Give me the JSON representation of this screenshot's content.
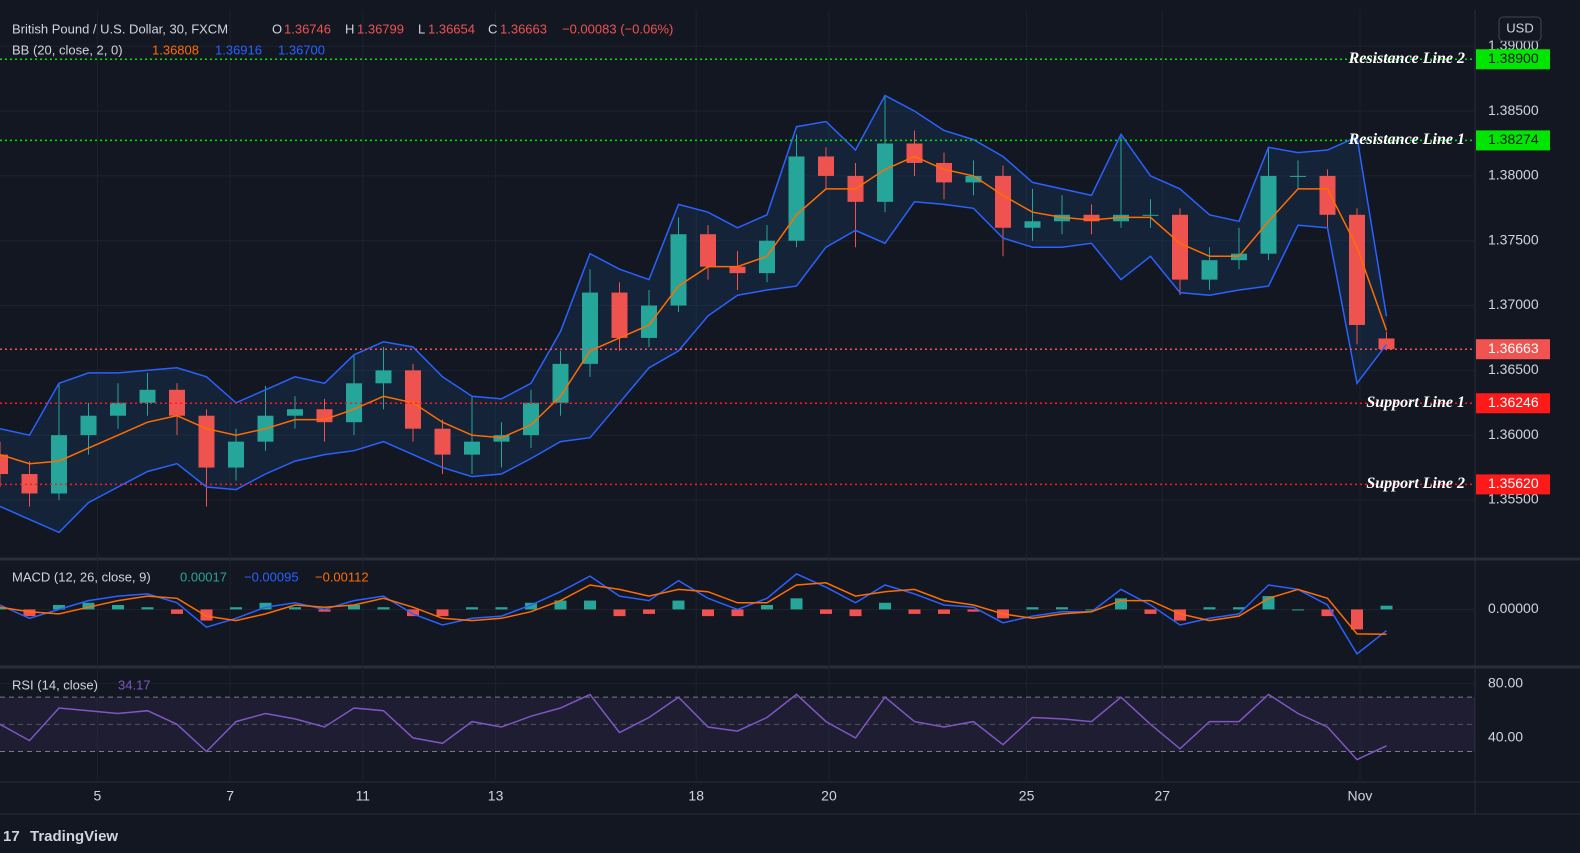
{
  "header": {
    "symbol": "British Pound / U.S. Dollar, 30, FXCM",
    "o_key": "O",
    "o": "1.36746",
    "h_key": "H",
    "h": "1.36799",
    "l_key": "L",
    "l": "1.36654",
    "c_key": "C",
    "c": "1.36663",
    "change": "−0.00083 (−0.06%)",
    "bb_name": "BB (20, close, 2, 0)",
    "bb_basis": "1.36808",
    "bb_upper": "1.36916",
    "bb_lower": "1.36700",
    "macd_name": "MACD (12, 26, close, 9)",
    "macd_hist": "0.00017",
    "macd_line": "−0.00095",
    "macd_signal": "−0.00112",
    "rsi_name": "RSI (14, close)",
    "rsi_value": "34.17",
    "currency": "USD",
    "watermark": "TradingView"
  },
  "chart_data": [
    {
      "type": "candlestick",
      "up_color": "#26a69a",
      "down_color": "#ef5350",
      "xlim": [
        0,
        50
      ],
      "xticks": [
        {
          "value": 3.3,
          "label": "5"
        },
        {
          "value": 7.8,
          "label": "7"
        },
        {
          "value": 12.3,
          "label": "11"
        },
        {
          "value": 16.8,
          "label": "13"
        },
        {
          "value": 23.6,
          "label": "18"
        },
        {
          "value": 28.1,
          "label": "20"
        },
        {
          "value": 34.8,
          "label": "25"
        },
        {
          "value": 39.4,
          "label": "27"
        },
        {
          "value": 46.1,
          "label": "Nov"
        }
      ],
      "ylim": [
        1.3506,
        1.3928
      ],
      "yticks": [
        {
          "value": 1.39,
          "label": "1.39000"
        },
        {
          "value": 1.385,
          "label": "1.38500"
        },
        {
          "value": 1.38,
          "label": "1.38000"
        },
        {
          "value": 1.375,
          "label": "1.37500"
        },
        {
          "value": 1.37,
          "label": "1.37000"
        },
        {
          "value": 1.365,
          "label": "1.36500"
        },
        {
          "value": 1.36,
          "label": "1.36000"
        },
        {
          "value": 1.355,
          "label": "1.35500"
        }
      ],
      "grid": true,
      "open": [
        1.3585,
        1.357,
        1.3555,
        1.36,
        1.3615,
        1.3625,
        1.3635,
        1.3615,
        1.3575,
        1.3595,
        1.3615,
        1.362,
        1.361,
        1.364,
        1.365,
        1.3605,
        1.3585,
        1.3595,
        1.36,
        1.3625,
        1.3655,
        1.371,
        1.3675,
        1.37,
        1.3755,
        1.373,
        1.3725,
        1.375,
        1.3815,
        1.38,
        1.378,
        1.3825,
        1.381,
        1.3795,
        1.38,
        1.376,
        1.3765,
        1.377,
        1.3765,
        1.377,
        1.377,
        1.372,
        1.3735,
        1.374,
        1.38,
        1.38,
        1.377,
        1.36746
      ],
      "high": [
        1.3595,
        1.358,
        1.364,
        1.3625,
        1.364,
        1.3648,
        1.364,
        1.362,
        1.3605,
        1.3638,
        1.363,
        1.3628,
        1.3662,
        1.3668,
        1.3655,
        1.3612,
        1.363,
        1.361,
        1.3635,
        1.3665,
        1.3728,
        1.3718,
        1.3712,
        1.3768,
        1.3762,
        1.3742,
        1.3762,
        1.3832,
        1.3822,
        1.381,
        1.3862,
        1.3835,
        1.3818,
        1.3812,
        1.3808,
        1.379,
        1.3785,
        1.3778,
        1.383,
        1.3782,
        1.3775,
        1.3745,
        1.376,
        1.3822,
        1.3812,
        1.3805,
        1.3775,
        1.36799
      ],
      "low": [
        1.356,
        1.3545,
        1.355,
        1.3585,
        1.3605,
        1.3615,
        1.36,
        1.3545,
        1.3565,
        1.3588,
        1.3605,
        1.3595,
        1.36,
        1.362,
        1.3595,
        1.357,
        1.357,
        1.3575,
        1.359,
        1.3615,
        1.3645,
        1.3665,
        1.3668,
        1.3695,
        1.372,
        1.3712,
        1.3718,
        1.3745,
        1.379,
        1.3745,
        1.3772,
        1.38,
        1.3782,
        1.3785,
        1.3738,
        1.375,
        1.3755,
        1.3755,
        1.376,
        1.376,
        1.3708,
        1.3712,
        1.3728,
        1.3735,
        1.379,
        1.376,
        1.367,
        1.36654
      ],
      "close": [
        1.357,
        1.3555,
        1.36,
        1.3615,
        1.3625,
        1.3635,
        1.3615,
        1.3575,
        1.3595,
        1.3615,
        1.362,
        1.361,
        1.364,
        1.365,
        1.3605,
        1.3585,
        1.3595,
        1.36,
        1.3625,
        1.3655,
        1.371,
        1.3675,
        1.37,
        1.3755,
        1.373,
        1.3725,
        1.375,
        1.3815,
        1.38,
        1.378,
        1.3825,
        1.381,
        1.3795,
        1.38,
        1.376,
        1.3765,
        1.377,
        1.3765,
        1.377,
        1.377,
        1.372,
        1.3735,
        1.374,
        1.38,
        1.38,
        1.377,
        1.3685,
        1.36663
      ],
      "series": [
        {
          "name": "upper",
          "color": "#2962ff",
          "values": [
            1.3605,
            1.36,
            1.364,
            1.3648,
            1.3648,
            1.365,
            1.3652,
            1.3645,
            1.3625,
            1.3635,
            1.3645,
            1.364,
            1.3662,
            1.3672,
            1.3668,
            1.3645,
            1.363,
            1.3628,
            1.364,
            1.368,
            1.374,
            1.3728,
            1.372,
            1.3778,
            1.3772,
            1.376,
            1.377,
            1.3838,
            1.3842,
            1.382,
            1.3862,
            1.385,
            1.3835,
            1.3828,
            1.3815,
            1.3795,
            1.379,
            1.3785,
            1.3832,
            1.38,
            1.379,
            1.377,
            1.3765,
            1.3822,
            1.3818,
            1.382,
            1.383,
            1.36916
          ]
        },
        {
          "name": "basis",
          "color": "#ff6d00",
          "values": [
            1.3585,
            1.3578,
            1.358,
            1.359,
            1.36,
            1.361,
            1.3615,
            1.3605,
            1.36,
            1.3605,
            1.3612,
            1.3612,
            1.362,
            1.363,
            1.3625,
            1.361,
            1.36,
            1.3598,
            1.3608,
            1.363,
            1.3665,
            1.3675,
            1.3685,
            1.3715,
            1.373,
            1.373,
            1.3738,
            1.377,
            1.379,
            1.379,
            1.3805,
            1.3815,
            1.3805,
            1.38,
            1.3785,
            1.3772,
            1.3768,
            1.3766,
            1.3768,
            1.3768,
            1.3748,
            1.3738,
            1.3738,
            1.3765,
            1.379,
            1.379,
            1.3745,
            1.36808
          ]
        },
        {
          "name": "lower",
          "color": "#2962ff",
          "values": [
            1.3545,
            1.3535,
            1.3525,
            1.3548,
            1.356,
            1.3572,
            1.3578,
            1.356,
            1.3558,
            1.357,
            1.358,
            1.3585,
            1.3588,
            1.3595,
            1.3585,
            1.3575,
            1.3568,
            1.357,
            1.3582,
            1.3595,
            1.3598,
            1.3625,
            1.3652,
            1.3665,
            1.3692,
            1.3708,
            1.3712,
            1.3715,
            1.3745,
            1.3758,
            1.3748,
            1.378,
            1.3778,
            1.3775,
            1.3752,
            1.3745,
            1.3745,
            1.3748,
            1.372,
            1.3738,
            1.371,
            1.3708,
            1.3712,
            1.3715,
            1.3762,
            1.376,
            1.364,
            1.367
          ]
        }
      ],
      "levels": [
        {
          "name": "Resistance Line 2",
          "value": 1.389,
          "label": "1.38900",
          "color": "#00e600"
        },
        {
          "name": "Resistance Line 1",
          "value": 1.38274,
          "label": "1.38274",
          "color": "#00e600"
        },
        {
          "value": 1.36663,
          "label": "1.36663",
          "color": "#f05350"
        },
        {
          "name": "Support Line 1",
          "value": 1.36246,
          "label": "1.36246",
          "color": "#ff1a1a"
        },
        {
          "name": "Support Line 2",
          "value": 1.3562,
          "label": "1.35620",
          "color": "#ff1a1a"
        }
      ]
    },
    {
      "type": "macd",
      "xlim": [
        0,
        50
      ],
      "ylim": [
        -0.0025,
        0.002
      ],
      "yticks": [
        {
          "value": 0,
          "label": "0.00000"
        }
      ],
      "series": [
        {
          "name": "histogram",
          "color": "#26a69a",
          "values": [
            0.0001,
            -0.0003,
            0.0002,
            0.0003,
            0.0002,
            0.0001,
            -0.0002,
            -0.0005,
            0.0001,
            0.0003,
            0.0001,
            -0.0001,
            0.0002,
            0.0001,
            -0.0003,
            -0.0003,
            0.0001,
            0.0001,
            0.0003,
            0.0004,
            0.0004,
            -0.0003,
            -0.0002,
            0.0004,
            -0.0003,
            -0.0003,
            0.0002,
            0.0005,
            -0.0002,
            -0.0003,
            0.0003,
            -0.0002,
            -0.0002,
            -0.0001,
            -0.0004,
            0.0001,
            0.0001,
            0,
            0.0005,
            -0.0002,
            -0.0005,
            0.0001,
            0.0001,
            0.0006,
            0,
            -0.0003,
            -0.0009,
            0.00017
          ]
        },
        {
          "name": "macd",
          "color": "#2962ff",
          "values": [
            0.0002,
            -0.0004,
            0,
            0.0004,
            0.0006,
            0.0007,
            0.0003,
            -0.0008,
            -0.0004,
            0.0001,
            0.0003,
            0,
            0.0004,
            0.0006,
            -0.0002,
            -0.0007,
            -0.0004,
            -0.0003,
            0.0002,
            0.0008,
            0.0015,
            0.0006,
            0.0004,
            0.0013,
            0.0005,
            0,
            0.0005,
            0.0016,
            0.001,
            0.0003,
            0.0011,
            0.0007,
            0.0002,
            0.0001,
            -0.0006,
            -0.0003,
            -0.0001,
            -0.0001,
            0.0009,
            0.0002,
            -0.0007,
            -0.0004,
            -0.0002,
            0.0011,
            0.0009,
            0.0002,
            -0.002,
            -0.00095
          ]
        },
        {
          "name": "signal",
          "color": "#ff6d00",
          "values": [
            0.0001,
            -0.0001,
            -0.0002,
            0.0001,
            0.0004,
            0.0006,
            0.0005,
            -0.0003,
            -0.0005,
            -0.0002,
            0.0002,
            0.0001,
            0.0002,
            0.0005,
            0.0001,
            -0.0004,
            -0.0005,
            -0.0004,
            -0.0001,
            0.0004,
            0.0011,
            0.0009,
            0.0006,
            0.0009,
            0.0008,
            0.0003,
            0.0003,
            0.0011,
            0.0012,
            0.0006,
            0.0008,
            0.0009,
            0.0004,
            0.0002,
            -0.0002,
            -0.0004,
            -0.0002,
            -0.0001,
            0.0004,
            0.0004,
            -0.0002,
            -0.0005,
            -0.0003,
            0.0005,
            0.0009,
            0.0005,
            -0.0011,
            -0.00112
          ]
        }
      ]
    },
    {
      "type": "rsi",
      "xlim": [
        0,
        50
      ],
      "ylim": [
        9,
        90
      ],
      "yticks": [
        {
          "value": 80,
          "label": "80.00"
        },
        {
          "value": 40,
          "label": "40.00"
        }
      ],
      "band": [
        30,
        70
      ],
      "mid": 50,
      "series": [
        {
          "name": "rsi",
          "color": "#7e57c2",
          "values": [
            50,
            38,
            62,
            60,
            58,
            60,
            50,
            30,
            52,
            58,
            54,
            48,
            62,
            60,
            40,
            36,
            52,
            48,
            56,
            62,
            72,
            44,
            55,
            70,
            48,
            45,
            55,
            72,
            52,
            40,
            70,
            52,
            48,
            52,
            35,
            55,
            54,
            52,
            70,
            50,
            32,
            52,
            52,
            72,
            58,
            48,
            24,
            34.17
          ]
        }
      ]
    }
  ]
}
